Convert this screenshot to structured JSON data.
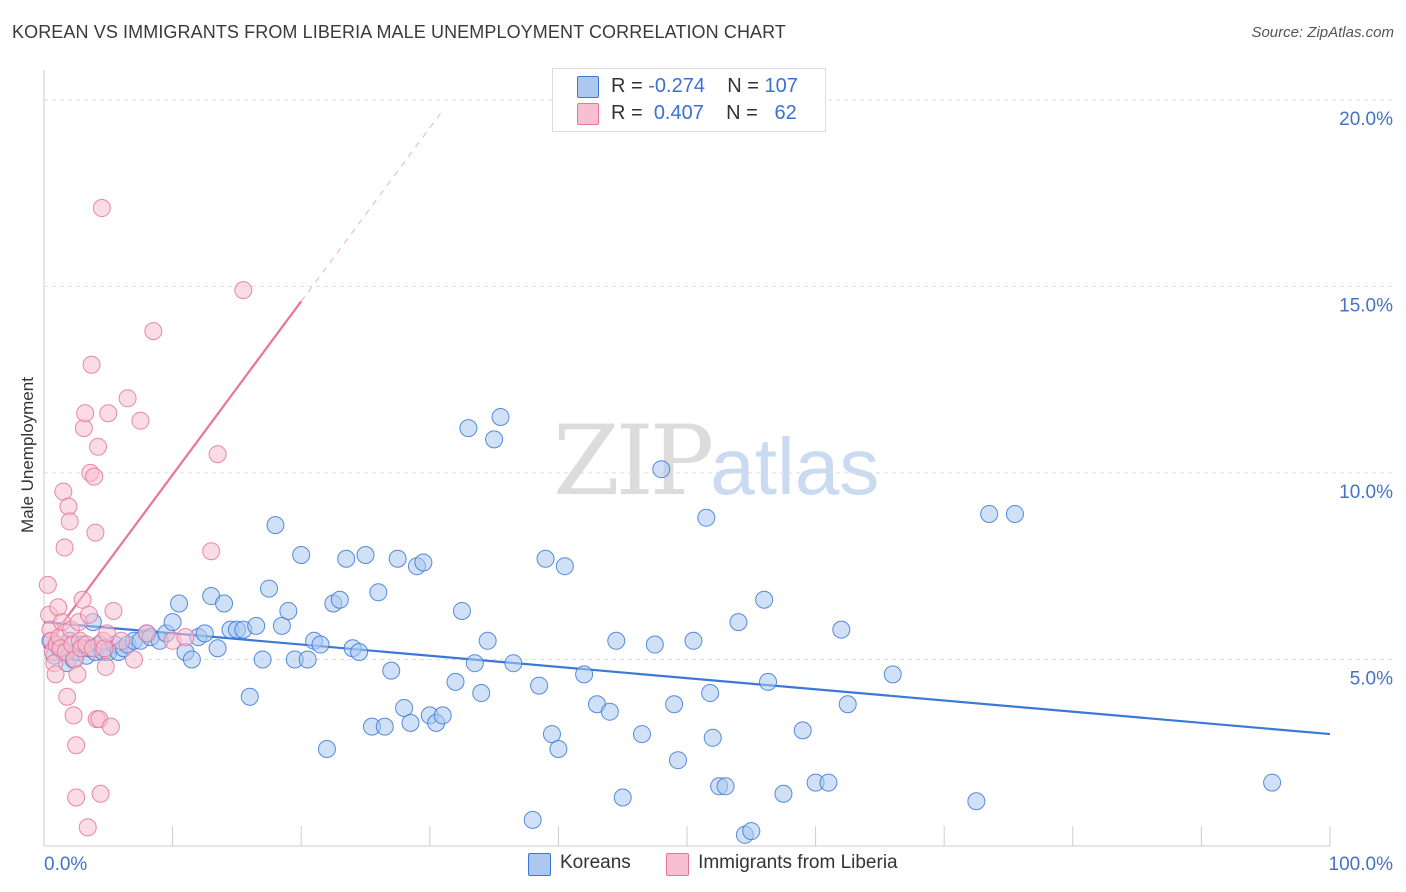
{
  "header": {
    "title": "KOREAN VS IMMIGRANTS FROM LIBERIA MALE UNEMPLOYMENT CORRELATION CHART",
    "source": "Source: ZipAtlas.com"
  },
  "watermark": {
    "zip": "ZIP",
    "atlas": "atlas"
  },
  "legend": {
    "rows": [
      {
        "r_label": "R = ",
        "r_value": "-0.274",
        "n_label": "N = ",
        "n_value": "107"
      },
      {
        "r_label": "R = ",
        "r_value": "0.407",
        "n_label": "N = ",
        "n_value": "62"
      }
    ]
  },
  "chart_data": {
    "type": "scatter",
    "title": "KOREAN VS IMMIGRANTS FROM LIBERIA MALE UNEMPLOYMENT CORRELATION CHART",
    "xlabel": "",
    "ylabel": "Male Unemployment",
    "xlim": [
      0,
      100
    ],
    "ylim": [
      0,
      20.8
    ],
    "x_tick_labels": [
      "0.0%",
      "100.0%"
    ],
    "y_ticks": [
      5,
      10,
      15,
      20
    ],
    "y_tick_labels": [
      "5.0%",
      "10.0%",
      "15.0%",
      "20.0%"
    ],
    "grid": true,
    "legend_position": "top-center",
    "colors": {
      "koreans": "#3b78d8",
      "liberia": "#e8749a",
      "koreans_fill": "#aac8f0",
      "liberia_fill": "#f6c0d0"
    },
    "series": [
      {
        "name": "Koreans",
        "r": -0.274,
        "n": 107,
        "trend": {
          "x0": 0,
          "y0": 6.0,
          "x1": 100,
          "y1": 3.0,
          "dashed_to": 100
        },
        "points": [
          [
            0.5,
            5.5
          ],
          [
            0.8,
            5.1
          ],
          [
            1.2,
            5.3
          ],
          [
            1.5,
            5.2
          ],
          [
            1.8,
            4.9
          ],
          [
            2.0,
            5.5
          ],
          [
            2.3,
            5.0
          ],
          [
            2.6,
            5.2
          ],
          [
            3.0,
            5.4
          ],
          [
            3.3,
            5.1
          ],
          [
            3.5,
            5.3
          ],
          [
            3.8,
            6.0
          ],
          [
            4.0,
            5.2
          ],
          [
            4.3,
            5.4
          ],
          [
            4.6,
            5.2
          ],
          [
            5.0,
            5.2
          ],
          [
            5.5,
            5.4
          ],
          [
            5.8,
            5.2
          ],
          [
            6.2,
            5.3
          ],
          [
            6.5,
            5.4
          ],
          [
            7.0,
            5.5
          ],
          [
            7.5,
            5.5
          ],
          [
            8.0,
            5.7
          ],
          [
            8.3,
            5.6
          ],
          [
            9.0,
            5.5
          ],
          [
            9.5,
            5.7
          ],
          [
            10.0,
            6.0
          ],
          [
            10.5,
            6.5
          ],
          [
            11.0,
            5.2
          ],
          [
            11.5,
            5.0
          ],
          [
            12.0,
            5.6
          ],
          [
            12.5,
            5.7
          ],
          [
            13.0,
            6.7
          ],
          [
            13.5,
            5.3
          ],
          [
            14.0,
            6.5
          ],
          [
            14.5,
            5.8
          ],
          [
            15.0,
            5.8
          ],
          [
            15.5,
            5.8
          ],
          [
            16.0,
            4.0
          ],
          [
            16.5,
            5.9
          ],
          [
            17.0,
            5.0
          ],
          [
            17.5,
            6.9
          ],
          [
            18.0,
            8.6
          ],
          [
            18.5,
            5.9
          ],
          [
            19.0,
            6.3
          ],
          [
            19.5,
            5.0
          ],
          [
            20.0,
            7.8
          ],
          [
            20.5,
            5.0
          ],
          [
            21.0,
            5.5
          ],
          [
            21.5,
            5.4
          ],
          [
            22.0,
            2.6
          ],
          [
            22.5,
            6.5
          ],
          [
            23.0,
            6.6
          ],
          [
            23.5,
            7.7
          ],
          [
            24.0,
            5.3
          ],
          [
            24.5,
            5.2
          ],
          [
            25.0,
            7.8
          ],
          [
            25.5,
            3.2
          ],
          [
            26.0,
            6.8
          ],
          [
            26.5,
            3.2
          ],
          [
            27.0,
            4.7
          ],
          [
            27.5,
            7.7
          ],
          [
            28.0,
            3.7
          ],
          [
            28.5,
            3.3
          ],
          [
            29.0,
            7.5
          ],
          [
            29.5,
            7.6
          ],
          [
            30.0,
            3.5
          ],
          [
            30.5,
            3.3
          ],
          [
            31.0,
            3.5
          ],
          [
            32.0,
            4.4
          ],
          [
            32.5,
            6.3
          ],
          [
            33.0,
            11.2
          ],
          [
            33.5,
            4.9
          ],
          [
            34.0,
            4.1
          ],
          [
            34.5,
            5.5
          ],
          [
            35.0,
            10.9
          ],
          [
            35.5,
            11.5
          ],
          [
            36.5,
            4.9
          ],
          [
            38.0,
            0.7
          ],
          [
            38.5,
            4.3
          ],
          [
            39.0,
            7.7
          ],
          [
            39.5,
            3.0
          ],
          [
            40.0,
            2.6
          ],
          [
            40.5,
            7.5
          ],
          [
            42.0,
            4.6
          ],
          [
            43.0,
            3.8
          ],
          [
            44.0,
            3.6
          ],
          [
            44.5,
            5.5
          ],
          [
            45.0,
            1.3
          ],
          [
            46.5,
            3.0
          ],
          [
            47.5,
            5.4
          ],
          [
            48.0,
            10.1
          ],
          [
            49.0,
            3.8
          ],
          [
            49.3,
            2.3
          ],
          [
            50.5,
            5.5
          ],
          [
            51.5,
            8.8
          ],
          [
            51.8,
            4.1
          ],
          [
            52.0,
            2.9
          ],
          [
            52.5,
            1.6
          ],
          [
            53.0,
            1.6
          ],
          [
            54.0,
            6.0
          ],
          [
            54.5,
            0.3
          ],
          [
            55.0,
            0.4
          ],
          [
            56.0,
            6.6
          ],
          [
            56.3,
            4.4
          ],
          [
            57.5,
            1.4
          ],
          [
            59.0,
            3.1
          ],
          [
            60.0,
            1.7
          ],
          [
            61.0,
            1.7
          ],
          [
            62.0,
            5.8
          ],
          [
            62.5,
            3.8
          ],
          [
            66.0,
            4.6
          ],
          [
            72.5,
            1.2
          ],
          [
            73.5,
            8.9
          ],
          [
            75.5,
            8.9
          ],
          [
            95.5,
            1.7
          ]
        ]
      },
      {
        "name": "Immigrants from Liberia",
        "r": 0.407,
        "n": 62,
        "trend": {
          "x0": 0,
          "y0": 5.3,
          "x1": 20,
          "y1": 14.6,
          "dashed_to": 31
        },
        "points": [
          [
            0.3,
            7.0
          ],
          [
            0.4,
            6.2
          ],
          [
            0.5,
            5.8
          ],
          [
            0.6,
            5.5
          ],
          [
            0.7,
            5.2
          ],
          [
            0.8,
            4.9
          ],
          [
            0.9,
            4.6
          ],
          [
            1.0,
            5.4
          ],
          [
            1.1,
            6.4
          ],
          [
            1.2,
            5.6
          ],
          [
            1.3,
            5.3
          ],
          [
            1.4,
            6.0
          ],
          [
            1.5,
            9.5
          ],
          [
            1.6,
            8.0
          ],
          [
            1.7,
            5.2
          ],
          [
            1.8,
            4.0
          ],
          [
            1.9,
            9.1
          ],
          [
            2.0,
            8.7
          ],
          [
            2.1,
            5.8
          ],
          [
            2.2,
            5.4
          ],
          [
            2.3,
            3.5
          ],
          [
            2.4,
            5.0
          ],
          [
            2.5,
            2.7
          ],
          [
            2.6,
            4.6
          ],
          [
            2.7,
            6.0
          ],
          [
            2.8,
            5.5
          ],
          [
            2.9,
            5.3
          ],
          [
            3.0,
            6.6
          ],
          [
            3.1,
            11.2
          ],
          [
            3.2,
            11.6
          ],
          [
            3.3,
            5.4
          ],
          [
            3.4,
            0.5
          ],
          [
            3.5,
            6.2
          ],
          [
            3.6,
            10.0
          ],
          [
            3.7,
            12.9
          ],
          [
            3.8,
            5.3
          ],
          [
            3.9,
            9.9
          ],
          [
            4.0,
            8.4
          ],
          [
            4.1,
            3.4
          ],
          [
            4.2,
            10.7
          ],
          [
            4.3,
            3.4
          ],
          [
            4.4,
            1.4
          ],
          [
            4.5,
            17.1
          ],
          [
            4.6,
            5.5
          ],
          [
            4.7,
            5.3
          ],
          [
            4.8,
            4.8
          ],
          [
            4.9,
            5.7
          ],
          [
            5.0,
            11.6
          ],
          [
            5.2,
            3.2
          ],
          [
            5.4,
            6.3
          ],
          [
            6.0,
            5.5
          ],
          [
            6.5,
            12.0
          ],
          [
            7.0,
            5.0
          ],
          [
            7.5,
            11.4
          ],
          [
            8.0,
            5.7
          ],
          [
            8.5,
            13.8
          ],
          [
            10.0,
            5.5
          ],
          [
            11.0,
            5.6
          ],
          [
            13.0,
            7.9
          ],
          [
            13.5,
            10.5
          ],
          [
            15.5,
            14.9
          ],
          [
            2.5,
            1.3
          ]
        ]
      }
    ]
  },
  "bottom_legend": {
    "items": [
      "Koreans",
      "Immigrants from Liberia"
    ]
  }
}
